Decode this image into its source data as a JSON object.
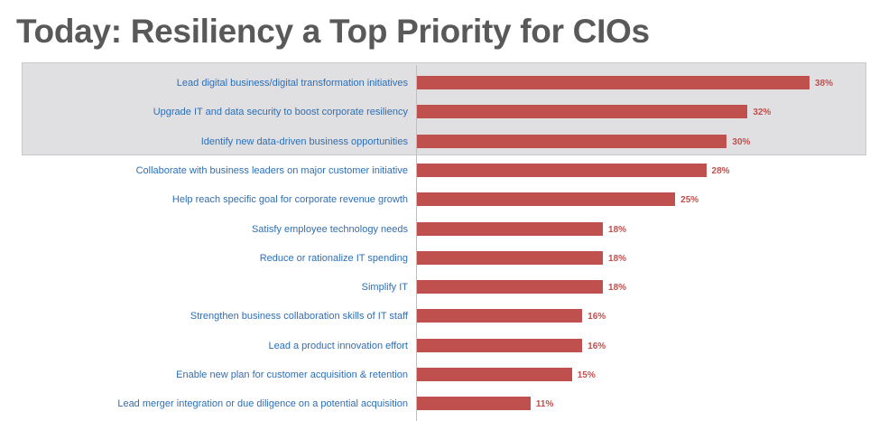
{
  "slide": {
    "title": "Today: Resiliency a Top Priority for CIOs"
  },
  "colors": {
    "bar": "#c0504d",
    "value_label": "#c0504d",
    "category_label": "#2e6fb5",
    "title": "#595959",
    "highlight": "#e0e0e2"
  },
  "chart_data": {
    "type": "bar",
    "orientation": "horizontal",
    "title": "",
    "xlabel": "",
    "ylabel": "",
    "value_suffix": "%",
    "xlim": [
      0,
      38
    ],
    "grid": false,
    "legend": "none",
    "highlighted_categories": [
      0,
      1,
      2
    ],
    "categories": [
      "Lead digital business/digital transformation initiatives",
      "Upgrade IT and data security to boost corporate resiliency",
      "Identify new data-driven business opportunities",
      "Collaborate with business leaders on major customer initiative",
      "Help reach specific goal for corporate revenue growth",
      "Satisfy employee technology needs",
      "Reduce or rationalize IT spending",
      "Simplify IT",
      "Strengthen business collaboration skills of IT staff",
      "Lead a product innovation effort",
      "Enable new plan for customer acquisition & retention",
      "Lead merger integration or due diligence on a potential acquisition"
    ],
    "values": [
      38,
      32,
      30,
      28,
      25,
      18,
      18,
      18,
      16,
      16,
      15,
      11
    ],
    "value_labels": [
      "38%",
      "32%",
      "30%",
      "28%",
      "25%",
      "18%",
      "18%",
      "18%",
      "16%",
      "16%",
      "15%",
      "11%"
    ]
  }
}
